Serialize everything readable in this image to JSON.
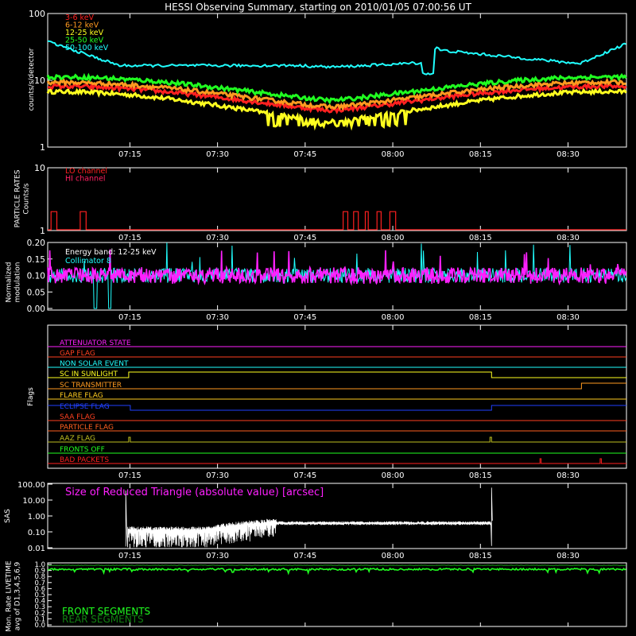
{
  "title": "HESSI Observing Summary, starting on 2010/01/05 07:00:56 UT",
  "time_ticks": [
    "07:15",
    "07:30",
    "07:45",
    "08:00",
    "08:15",
    "08:30"
  ],
  "chart_data": [
    {
      "type": "line",
      "panel": "count-rates",
      "ylabel": "counts/s/detector",
      "y_scale": "log",
      "ylim": [
        1,
        100
      ],
      "y_ticks": [
        "1",
        "10",
        "100"
      ],
      "xlim_minutes": [
        0.93,
        100
      ],
      "legend_placement": "top-left",
      "series": [
        {
          "name": "3-6 keV",
          "color": "#ff2020"
        },
        {
          "name": "6-12 keV",
          "color": "#ff9a20"
        },
        {
          "name": "12-25 keV",
          "color": "#ffff20"
        },
        {
          "name": "25-50 keV",
          "color": "#20ff20"
        },
        {
          "name": "50-100 keV",
          "color": "#20ffff"
        }
      ]
    },
    {
      "type": "line",
      "panel": "particle-rates",
      "ylabel": "PARTICLE RATES",
      "ylabel2": "Counts/s",
      "y_scale": "log",
      "ylim": [
        1,
        10
      ],
      "y_ticks": [
        "1",
        "10"
      ],
      "legend_placement": "top-left",
      "series": [
        {
          "name": "LO channel",
          "color": "#ff2020"
        },
        {
          "name": "HI channel",
          "color": "#ff2060"
        }
      ],
      "pulses_minutes": [
        [
          1.5,
          2.5
        ],
        [
          6.5,
          7.5
        ],
        [
          51.5,
          52.3
        ],
        [
          53.3,
          54.1
        ],
        [
          55.3,
          55.8
        ],
        [
          57.3,
          58.0
        ],
        [
          59.5,
          60.5
        ]
      ],
      "pulse_level": 2
    },
    {
      "type": "line",
      "panel": "modulation",
      "ylabel": "Normalized",
      "ylabel2": "modulation",
      "ylim": [
        0.0,
        0.2
      ],
      "y_ticks": [
        "0.00",
        "0.05",
        "0.10",
        "0.15",
        "0.20"
      ],
      "legend_placement": "top-left",
      "annotation": "Energy band: 12-25 keV",
      "series": [
        {
          "name": "Collimator 8",
          "color": "#20ffff"
        },
        {
          "name": "",
          "color": "#ff20ff"
        }
      ]
    },
    {
      "type": "line",
      "panel": "flags",
      "ylabel": "Flags",
      "flags": [
        {
          "label": "ATTENUATOR STATE",
          "color": "#ff20ff"
        },
        {
          "label": "GAP FLAG",
          "color": "#ff4020"
        },
        {
          "label": "NON SOLAR EVENT",
          "color": "#20ffff"
        },
        {
          "label": "SC IN SUNLIGHT",
          "color": "#ffff20"
        },
        {
          "label": "SC TRANSMITTER",
          "color": "#ff9a20"
        },
        {
          "label": "FLARE FLAG",
          "color": "#ffcc20"
        },
        {
          "label": "ECLIPSE FLAG",
          "color": "#2040ff"
        },
        {
          "label": "SAA FLAG",
          "color": "#ff4020"
        },
        {
          "label": "PARTICLE FLAG",
          "color": "#ff6020"
        },
        {
          "label": "AAZ FLAG",
          "color": "#c0c020"
        },
        {
          "label": "FRONTS OFF",
          "color": "#20ff20"
        },
        {
          "label": "BAD PACKETS",
          "color": "#ff2020"
        }
      ]
    },
    {
      "type": "line",
      "panel": "sas",
      "ylabel": "SAS",
      "y_scale": "log",
      "ylim": [
        0.01,
        100
      ],
      "y_ticks": [
        "0.01",
        "0.10",
        "1.00",
        "10.00",
        "100.00"
      ],
      "annotation": "Size of Reduced Triangle (absolute value) [arcsec]",
      "series": [
        {
          "name": "",
          "color": "#ffffff"
        }
      ]
    },
    {
      "type": "line",
      "panel": "livetime",
      "ylabel": "Mon. Rate LIVETIME",
      "ylabel2": "avg of D1,3,4,5,6,9",
      "ylim": [
        0.0,
        1.0
      ],
      "y_ticks": [
        "0.0",
        "0.1",
        "0.2",
        "0.3",
        "0.4",
        "0.5",
        "0.6",
        "0.7",
        "0.8",
        "0.9",
        "1.0"
      ],
      "legend_placement": "bottom-left",
      "series": [
        {
          "name": "FRONT SEGMENTS",
          "color": "#20ff20"
        },
        {
          "name": "REAR SEGMENTS",
          "color": "#108010"
        }
      ]
    }
  ]
}
